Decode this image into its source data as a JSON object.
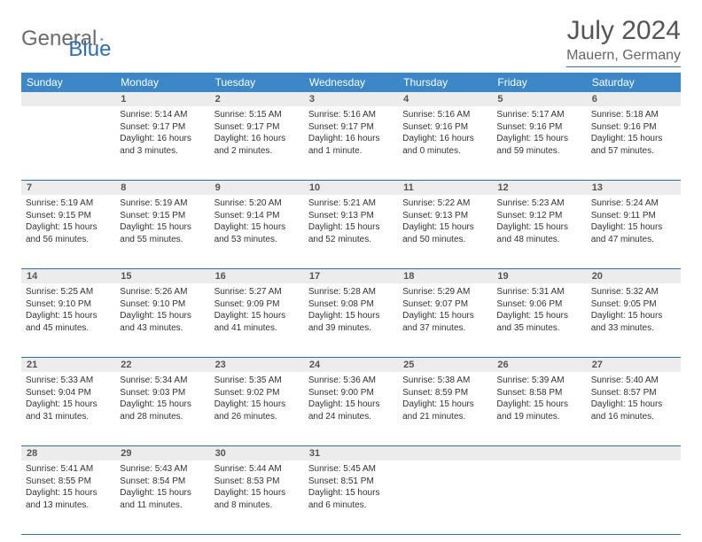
{
  "logo": {
    "text1": "General",
    "text2": "Blue"
  },
  "title": "July 2024",
  "location": "Mauern, Germany",
  "colors": {
    "header_bg": "#3b87c8",
    "accent": "#2f6fb0",
    "daynum_bg": "#ececec",
    "text": "#333333",
    "logo_gray": "#6b6b6b"
  },
  "day_names": [
    "Sunday",
    "Monday",
    "Tuesday",
    "Wednesday",
    "Thursday",
    "Friday",
    "Saturday"
  ],
  "weeks": [
    {
      "nums": [
        "",
        "1",
        "2",
        "3",
        "4",
        "5",
        "6"
      ],
      "days": [
        null,
        {
          "sunrise": "5:14 AM",
          "sunset": "9:17 PM",
          "daylight": "16 hours and 3 minutes."
        },
        {
          "sunrise": "5:15 AM",
          "sunset": "9:17 PM",
          "daylight": "16 hours and 2 minutes."
        },
        {
          "sunrise": "5:16 AM",
          "sunset": "9:17 PM",
          "daylight": "16 hours and 1 minute."
        },
        {
          "sunrise": "5:16 AM",
          "sunset": "9:16 PM",
          "daylight": "16 hours and 0 minutes."
        },
        {
          "sunrise": "5:17 AM",
          "sunset": "9:16 PM",
          "daylight": "15 hours and 59 minutes."
        },
        {
          "sunrise": "5:18 AM",
          "sunset": "9:16 PM",
          "daylight": "15 hours and 57 minutes."
        }
      ]
    },
    {
      "nums": [
        "7",
        "8",
        "9",
        "10",
        "11",
        "12",
        "13"
      ],
      "days": [
        {
          "sunrise": "5:19 AM",
          "sunset": "9:15 PM",
          "daylight": "15 hours and 56 minutes."
        },
        {
          "sunrise": "5:19 AM",
          "sunset": "9:15 PM",
          "daylight": "15 hours and 55 minutes."
        },
        {
          "sunrise": "5:20 AM",
          "sunset": "9:14 PM",
          "daylight": "15 hours and 53 minutes."
        },
        {
          "sunrise": "5:21 AM",
          "sunset": "9:13 PM",
          "daylight": "15 hours and 52 minutes."
        },
        {
          "sunrise": "5:22 AM",
          "sunset": "9:13 PM",
          "daylight": "15 hours and 50 minutes."
        },
        {
          "sunrise": "5:23 AM",
          "sunset": "9:12 PM",
          "daylight": "15 hours and 48 minutes."
        },
        {
          "sunrise": "5:24 AM",
          "sunset": "9:11 PM",
          "daylight": "15 hours and 47 minutes."
        }
      ]
    },
    {
      "nums": [
        "14",
        "15",
        "16",
        "17",
        "18",
        "19",
        "20"
      ],
      "days": [
        {
          "sunrise": "5:25 AM",
          "sunset": "9:10 PM",
          "daylight": "15 hours and 45 minutes."
        },
        {
          "sunrise": "5:26 AM",
          "sunset": "9:10 PM",
          "daylight": "15 hours and 43 minutes."
        },
        {
          "sunrise": "5:27 AM",
          "sunset": "9:09 PM",
          "daylight": "15 hours and 41 minutes."
        },
        {
          "sunrise": "5:28 AM",
          "sunset": "9:08 PM",
          "daylight": "15 hours and 39 minutes."
        },
        {
          "sunrise": "5:29 AM",
          "sunset": "9:07 PM",
          "daylight": "15 hours and 37 minutes."
        },
        {
          "sunrise": "5:31 AM",
          "sunset": "9:06 PM",
          "daylight": "15 hours and 35 minutes."
        },
        {
          "sunrise": "5:32 AM",
          "sunset": "9:05 PM",
          "daylight": "15 hours and 33 minutes."
        }
      ]
    },
    {
      "nums": [
        "21",
        "22",
        "23",
        "24",
        "25",
        "26",
        "27"
      ],
      "days": [
        {
          "sunrise": "5:33 AM",
          "sunset": "9:04 PM",
          "daylight": "15 hours and 31 minutes."
        },
        {
          "sunrise": "5:34 AM",
          "sunset": "9:03 PM",
          "daylight": "15 hours and 28 minutes."
        },
        {
          "sunrise": "5:35 AM",
          "sunset": "9:02 PM",
          "daylight": "15 hours and 26 minutes."
        },
        {
          "sunrise": "5:36 AM",
          "sunset": "9:00 PM",
          "daylight": "15 hours and 24 minutes."
        },
        {
          "sunrise": "5:38 AM",
          "sunset": "8:59 PM",
          "daylight": "15 hours and 21 minutes."
        },
        {
          "sunrise": "5:39 AM",
          "sunset": "8:58 PM",
          "daylight": "15 hours and 19 minutes."
        },
        {
          "sunrise": "5:40 AM",
          "sunset": "8:57 PM",
          "daylight": "15 hours and 16 minutes."
        }
      ]
    },
    {
      "nums": [
        "28",
        "29",
        "30",
        "31",
        "",
        "",
        ""
      ],
      "days": [
        {
          "sunrise": "5:41 AM",
          "sunset": "8:55 PM",
          "daylight": "15 hours and 13 minutes."
        },
        {
          "sunrise": "5:43 AM",
          "sunset": "8:54 PM",
          "daylight": "15 hours and 11 minutes."
        },
        {
          "sunrise": "5:44 AM",
          "sunset": "8:53 PM",
          "daylight": "15 hours and 8 minutes."
        },
        {
          "sunrise": "5:45 AM",
          "sunset": "8:51 PM",
          "daylight": "15 hours and 6 minutes."
        },
        null,
        null,
        null
      ]
    }
  ],
  "labels": {
    "sunrise": "Sunrise:",
    "sunset": "Sunset:",
    "daylight": "Daylight:"
  }
}
